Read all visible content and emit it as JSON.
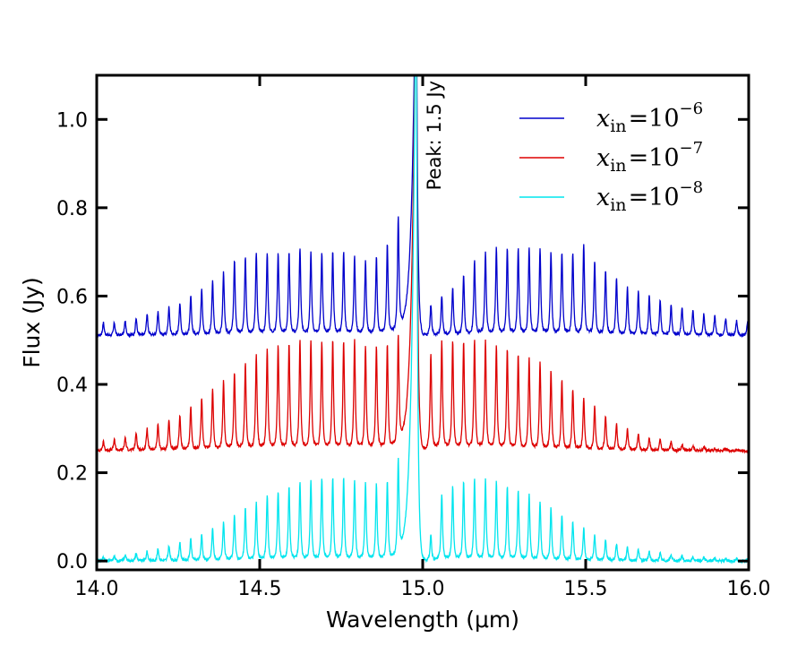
{
  "chart_data": {
    "type": "line",
    "xlabel": "Wavelength (μm)",
    "ylabel": "Flux (Jy)",
    "xlim": [
      14.0,
      16.0
    ],
    "ylim": [
      -0.02,
      1.1
    ],
    "x_ticks": [
      "14.0",
      "14.5",
      "15.0",
      "15.5",
      "16.0"
    ],
    "x_tick_values": [
      14.0,
      14.5,
      15.0,
      15.5,
      16.0
    ],
    "y_ticks": [
      "0.0",
      "0.2",
      "0.4",
      "0.6",
      "0.8",
      "1.0"
    ],
    "y_tick_values": [
      0.0,
      0.2,
      0.4,
      0.6,
      0.8,
      1.0
    ],
    "grid": false,
    "legend_position": "top-right",
    "annotation": {
      "text": "Peak: 1.5 Jy",
      "x": 15.0,
      "y": 1.1
    },
    "q_branch": {
      "center": 14.98,
      "peak": 1.5
    },
    "series": [
      {
        "name": "x_in = 10^-6",
        "legend_base": "x",
        "legend_sub": "in",
        "legend_eq": "=10",
        "legend_exp": "−6",
        "color": "#0000cc",
        "baseline": 0.51,
        "line_spacing": 0.0335,
        "blue_line_tops": [
          0.53,
          0.535,
          0.54,
          0.54,
          0.545,
          0.55,
          0.56,
          0.565,
          0.575,
          0.585,
          0.6,
          0.615,
          0.635,
          0.655,
          0.68,
          0.69,
          0.7,
          0.7,
          0.7,
          0.7,
          0.71,
          0.7,
          0.7,
          0.7,
          0.7,
          0.69,
          0.68,
          0.69,
          0.72,
          0.77
        ],
        "red_line_tops": [
          0.58,
          0.6,
          0.62,
          0.65,
          0.68,
          0.7,
          0.71,
          0.71,
          0.71,
          0.71,
          0.71,
          0.7,
          0.7,
          0.7,
          0.72,
          0.68,
          0.66,
          0.64,
          0.62,
          0.61,
          0.6,
          0.59,
          0.58,
          0.575,
          0.57,
          0.56,
          0.555,
          0.55,
          0.545,
          0.54
        ]
      },
      {
        "name": "x_in = 10^-7",
        "legend_base": "x",
        "legend_sub": "in",
        "legend_eq": "=10",
        "legend_exp": "−7",
        "color": "#dd0000",
        "baseline": 0.25,
        "line_spacing": 0.0335,
        "blue_line_tops": [
          0.26,
          0.265,
          0.27,
          0.275,
          0.28,
          0.29,
          0.3,
          0.31,
          0.32,
          0.33,
          0.35,
          0.37,
          0.39,
          0.41,
          0.43,
          0.45,
          0.47,
          0.48,
          0.49,
          0.495,
          0.5,
          0.5,
          0.5,
          0.5,
          0.5,
          0.5,
          0.49,
          0.49,
          0.49,
          0.5
        ],
        "red_line_tops": [
          0.47,
          0.5,
          0.5,
          0.5,
          0.5,
          0.5,
          0.49,
          0.48,
          0.47,
          0.46,
          0.45,
          0.43,
          0.41,
          0.39,
          0.37,
          0.35,
          0.33,
          0.31,
          0.3,
          0.29,
          0.28,
          0.275,
          0.27,
          0.265,
          0.26,
          0.26,
          0.255,
          0.255,
          0.25,
          0.25
        ]
      },
      {
        "name": "x_in = 10^-8",
        "legend_base": "x",
        "legend_sub": "in",
        "legend_eq": "=10",
        "legend_exp": "−8",
        "color": "#00e5ee",
        "baseline": 0.0,
        "line_spacing": 0.0335,
        "blue_line_tops": [
          0.005,
          0.008,
          0.01,
          0.012,
          0.015,
          0.018,
          0.022,
          0.028,
          0.035,
          0.042,
          0.05,
          0.06,
          0.075,
          0.09,
          0.105,
          0.12,
          0.135,
          0.15,
          0.16,
          0.17,
          0.18,
          0.185,
          0.19,
          0.19,
          0.19,
          0.185,
          0.18,
          0.175,
          0.18,
          0.22
        ],
        "red_line_tops": [
          0.06,
          0.15,
          0.17,
          0.18,
          0.185,
          0.185,
          0.18,
          0.17,
          0.16,
          0.15,
          0.135,
          0.12,
          0.105,
          0.09,
          0.075,
          0.06,
          0.05,
          0.04,
          0.033,
          0.027,
          0.022,
          0.018,
          0.015,
          0.012,
          0.01,
          0.008,
          0.007,
          0.006,
          0.005,
          0.005
        ]
      }
    ]
  }
}
